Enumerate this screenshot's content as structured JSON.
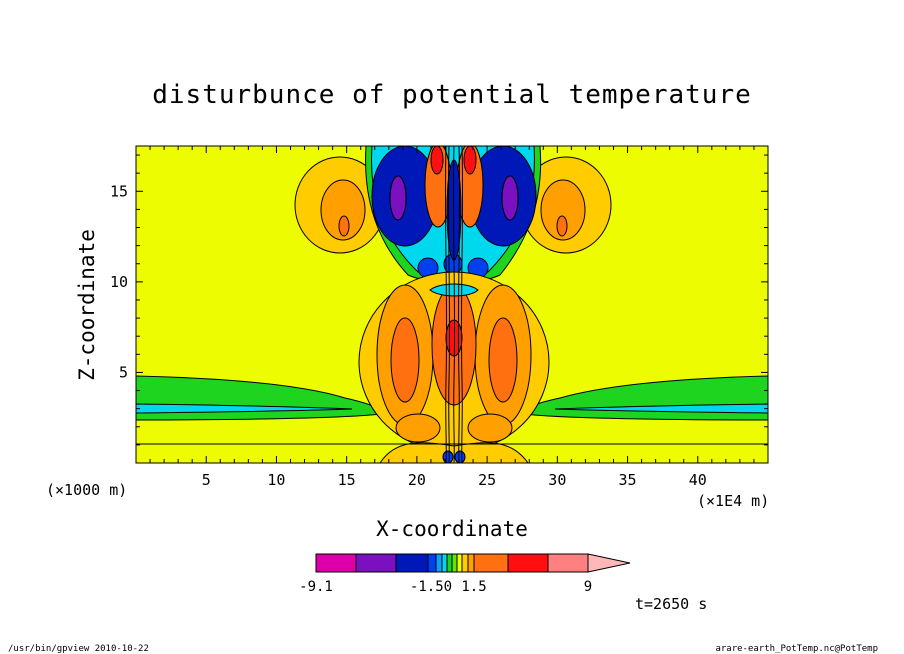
{
  "chart_data": {
    "type": "heatmap",
    "title": "disturbunce of potential temperature",
    "xlabel": "X-coordinate",
    "ylabel": "Z-coordinate",
    "x_unit": "(×1E4 m)",
    "y_unit": "(×1000 m)",
    "xlim": [
      0,
      45
    ],
    "ylim": [
      0,
      17.5
    ],
    "x_ticks": [
      5,
      10,
      15,
      20,
      25,
      30,
      35,
      40
    ],
    "y_ticks": [
      5,
      10,
      15
    ],
    "colorbar": {
      "levels": [
        -9.1,
        -1.5,
        0,
        1.5,
        9
      ],
      "tick_labels": [
        "-9.1",
        "-1.50",
        "1.5",
        "9"
      ],
      "colors": [
        "#dd00aa",
        "#7a10c0",
        "#0018b8",
        "#0040f0",
        "#0aa0ff",
        "#00d8ee",
        "#1ed41e",
        "#5ee800",
        "#eefc00",
        "#ffcc00",
        "#ffa000",
        "#ff7010",
        "#ff1010",
        "#ff8080",
        "#ffb8b8"
      ]
    },
    "time_label": "t=2650 s"
  },
  "footer": {
    "left": "/usr/bin/gpview  2010-10-22",
    "right": "arare-earth_PotTemp.nc@PotTemp"
  }
}
